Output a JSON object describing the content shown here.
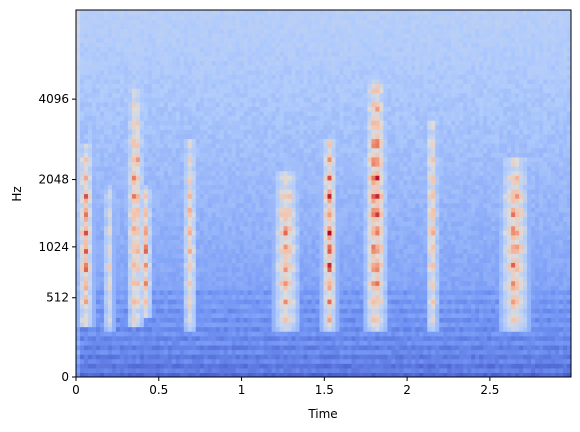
{
  "chart_data": {
    "type": "heatmap",
    "title": "",
    "xlabel": "Time",
    "ylabel": "Hz",
    "xlim": [
      0,
      2.99
    ],
    "y_scale": "mel",
    "ylim_hz": [
      0,
      8192
    ],
    "x_ticks": [
      {
        "value": 0,
        "label": "0"
      },
      {
        "value": 0.5,
        "label": "0.5"
      },
      {
        "value": 1,
        "label": "1"
      },
      {
        "value": 1.5,
        "label": "1.5"
      },
      {
        "value": 2,
        "label": "2"
      },
      {
        "value": 2.5,
        "label": "2.5"
      }
    ],
    "y_ticks": [
      {
        "value": 0,
        "label": "0"
      },
      {
        "value": 512,
        "label": "512"
      },
      {
        "value": 1024,
        "label": "1024"
      },
      {
        "value": 2048,
        "label": "2048"
      },
      {
        "value": 4096,
        "label": "4096"
      }
    ],
    "colormap": "coolwarm",
    "colormap_stops": [
      "#3b4cc0",
      "#7396f5",
      "#b0cbfc",
      "#dddcdc",
      "#f6bfa6",
      "#ea7b60",
      "#b40426"
    ],
    "grid": false,
    "legend": "none",
    "energy_events": [
      {
        "time": 0.06,
        "width": 0.05,
        "f_low": 300,
        "f_high": 2800,
        "level": 0.85
      },
      {
        "time": 0.2,
        "width": 0.03,
        "f_low": 250,
        "f_high": 2000,
        "level": 0.55
      },
      {
        "time": 0.36,
        "width": 0.05,
        "f_low": 300,
        "f_high": 4500,
        "level": 0.9
      },
      {
        "time": 0.42,
        "width": 0.04,
        "f_low": 350,
        "f_high": 2000,
        "level": 0.8
      },
      {
        "time": 0.69,
        "width": 0.04,
        "f_low": 250,
        "f_high": 3000,
        "level": 0.7
      },
      {
        "time": 1.27,
        "width": 0.08,
        "f_low": 250,
        "f_high": 2200,
        "level": 0.8
      },
      {
        "time": 1.53,
        "width": 0.05,
        "f_low": 250,
        "f_high": 3000,
        "level": 0.9
      },
      {
        "time": 1.81,
        "width": 0.07,
        "f_low": 250,
        "f_high": 4800,
        "level": 1.0
      },
      {
        "time": 2.15,
        "width": 0.04,
        "f_low": 250,
        "f_high": 3500,
        "level": 0.75
      },
      {
        "time": 2.65,
        "width": 0.09,
        "f_low": 250,
        "f_high": 2500,
        "level": 0.85
      }
    ]
  }
}
